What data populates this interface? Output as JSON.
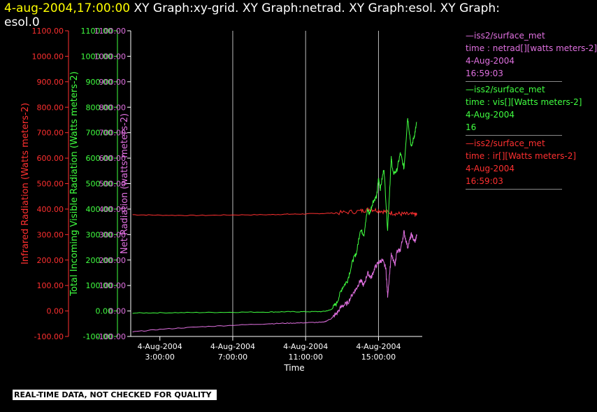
{
  "header": {
    "timestamp": "4-aug-2004,17:00:00",
    "title": "  XY Graph:xy-grid.  XY Graph:netrad.  XY Graph:esol.  XY Graph:",
    "title_line2": "esol.0"
  },
  "colors": {
    "red": "#ff3030",
    "green": "#40ff40",
    "magenta": "#e070e0",
    "axis": "#ffffff",
    "grid": "#bbbbbb"
  },
  "legend": [
    {
      "line1": "—iss2/surface_met",
      "line2": "time : netrad[][watts meters-2]",
      "line3": "4-Aug-2004",
      "line4": "16:59:03",
      "color": "#e070e0"
    },
    {
      "line1": "—iss2/surface_met",
      "line2": "time : vis[][Watts meters-2]",
      "line3": "4-Aug-2004",
      "line4": "16",
      "color": "#40ff40"
    },
    {
      "line1": "—iss2/surface_met",
      "line2": "time : ir[][Watts meters-2]",
      "line3": "4-Aug-2004",
      "line4": "16:59:03",
      "color": "#ff3030"
    }
  ],
  "quality_note": "REAL-TIME DATA, NOT CHECKED FOR QUALITY",
  "chart_data": {
    "type": "line",
    "xlabel": "Time",
    "x_tick_labels": [
      {
        "date": "4-Aug-2004",
        "time": "3:00:00",
        "hour": 3
      },
      {
        "date": "4-Aug-2004",
        "time": "7:00:00",
        "hour": 7
      },
      {
        "date": "4-Aug-2004",
        "time": "11:00:00",
        "hour": 11
      },
      {
        "date": "4-Aug-2004",
        "time": "15:00:00",
        "hour": 15
      }
    ],
    "xlim_hours": [
      1.4,
      17.4
    ],
    "vertical_grid_hours": [
      7,
      11,
      15
    ],
    "y_axes": [
      {
        "label": "Infrared Radiation (Watts meters-2)",
        "color": "#ff3030",
        "ylim": [
          -100,
          1100
        ],
        "ticks": [
          "-100.00",
          "0.00",
          "100.00",
          "200.00",
          "300.00",
          "400.00",
          "500.00",
          "600.00",
          "700.00",
          "800.00",
          "900.00",
          "1000.00",
          "1100.00"
        ]
      },
      {
        "label": "Total Incoming Visible Radiation (Watts meters-2)",
        "color": "#40ff40",
        "ylim": [
          -100,
          1100
        ],
        "ticks": [
          "-100.00",
          "0.00",
          "100.00",
          "200.00",
          "300.00",
          "400.00",
          "500.00",
          "600.00",
          "700.00",
          "800.00",
          "900.00",
          "1000.00",
          "1100.00"
        ]
      },
      {
        "label": "Net Radiation (watts meters-2)",
        "color": "#e070e0",
        "ylim": [
          -100,
          1100
        ],
        "ticks": [
          "-100.00",
          "0.00",
          "100.00",
          "200.00",
          "300.00",
          "400.00",
          "500.00",
          "600.00",
          "700.00",
          "800.00",
          "900.00",
          "1000.00",
          "1100.00"
        ]
      }
    ],
    "series": [
      {
        "name": "ir",
        "color": "#ff3030",
        "x": [
          1.5,
          3,
          5,
          7,
          9,
          10,
          11,
          12,
          13,
          14,
          14.5,
          15,
          15.5,
          16,
          16.5,
          17,
          17.1
        ],
        "y": [
          378,
          376,
          375,
          377,
          378,
          380,
          381,
          383,
          386,
          392,
          400,
          395,
          388,
          382,
          380,
          378,
          378
        ]
      },
      {
        "name": "vis",
        "color": "#40ff40",
        "x": [
          1.5,
          3,
          5,
          7,
          9,
          10,
          11,
          12,
          12.4,
          12.7,
          13,
          13.3,
          13.6,
          13.8,
          14,
          14.2,
          14.4,
          14.5,
          14.7,
          14.9,
          15,
          15.1,
          15.3,
          15.5,
          15.7,
          15.8,
          16,
          16.2,
          16.4,
          16.6,
          16.8,
          17,
          17.1
        ],
        "y": [
          -8,
          -7,
          -6,
          -5,
          -4,
          -3,
          -3,
          -2,
          5,
          30,
          90,
          120,
          200,
          230,
          320,
          300,
          400,
          380,
          430,
          450,
          520,
          480,
          560,
          320,
          600,
          540,
          550,
          620,
          560,
          760,
          640,
          700,
          740
        ]
      },
      {
        "name": "netrad",
        "color": "#e070e0",
        "x": [
          1.5,
          3,
          5,
          7,
          9,
          10,
          11,
          12,
          12.4,
          12.7,
          13,
          13.3,
          13.6,
          13.8,
          14,
          14.2,
          14.4,
          14.6,
          14.8,
          15,
          15.2,
          15.4,
          15.5,
          15.7,
          15.9,
          16,
          16.2,
          16.4,
          16.6,
          16.8,
          17,
          17.1
        ],
        "y": [
          -82,
          -72,
          -63,
          -56,
          -50,
          -48,
          -46,
          -44,
          -30,
          -10,
          20,
          30,
          70,
          90,
          120,
          100,
          150,
          130,
          170,
          190,
          200,
          170,
          60,
          220,
          180,
          230,
          240,
          310,
          250,
          300,
          270,
          300
        ]
      }
    ]
  }
}
